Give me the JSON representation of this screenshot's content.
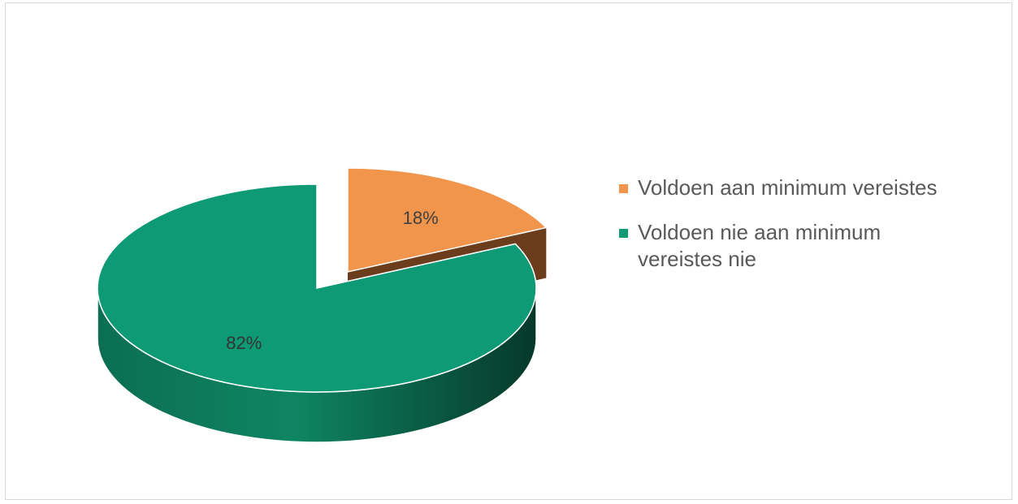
{
  "chart_data": {
    "type": "pie",
    "style": "3d-exploded",
    "categories": [
      "Voldoen aan minimum vereistes",
      "Voldoen nie aan minimum vereistes nie"
    ],
    "values": [
      18,
      82
    ],
    "data_labels": [
      "18%",
      "82%"
    ],
    "colors": [
      "#f0954b",
      "#0e9a74"
    ],
    "side_colors": [
      "#6b3d1c",
      "#0a5c44"
    ],
    "label_colors": [
      "#404040",
      "#333333"
    ],
    "legend": {
      "position": "right",
      "entries": [
        "Voldoen aan minimum vereistes",
        "Voldoen nie aan minimum vereistes nie"
      ]
    },
    "title": "",
    "exploded_slice": 0
  }
}
